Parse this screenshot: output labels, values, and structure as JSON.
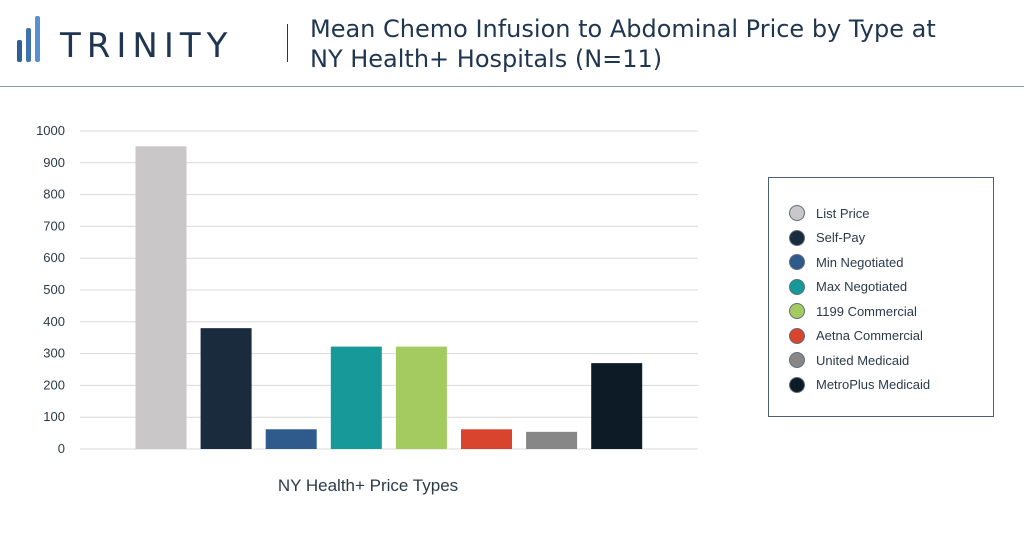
{
  "header": {
    "logo_text": "TRINITY",
    "title_line1": "Mean Chemo Infusion to Abdominal Price by Type at",
    "title_line2": "NY Health+ Hospitals (N=11)"
  },
  "chart_data": {
    "type": "bar",
    "title": "Mean Chemo Infusion to Abdominal Price by Type at NY Health+ Hospitals (N=11)",
    "xlabel": "NY Health+ Price Types",
    "ylabel": "",
    "ylim": [
      0,
      1000
    ],
    "yticks": [
      0,
      100,
      200,
      300,
      400,
      500,
      600,
      700,
      800,
      900,
      1000
    ],
    "grid": true,
    "legend_position": "right",
    "series": [
      {
        "name": "List Price",
        "value": 952,
        "color": "#c9c7c8"
      },
      {
        "name": "Self-Pay",
        "value": 380,
        "color": "#1a2b3e"
      },
      {
        "name": "Min Negotiated",
        "value": 62,
        "color": "#2e5a8c"
      },
      {
        "name": "Max Negotiated",
        "value": 322,
        "color": "#17999a"
      },
      {
        "name": "1199 Commercial",
        "value": 322,
        "color": "#a3cb5f"
      },
      {
        "name": "Aetna Commercial",
        "value": 62,
        "color": "#d8442d"
      },
      {
        "name": "United Medicaid",
        "value": 54,
        "color": "#878787"
      },
      {
        "name": "MetroPlus Medicaid",
        "value": 270,
        "color": "#0d1b27"
      }
    ]
  }
}
